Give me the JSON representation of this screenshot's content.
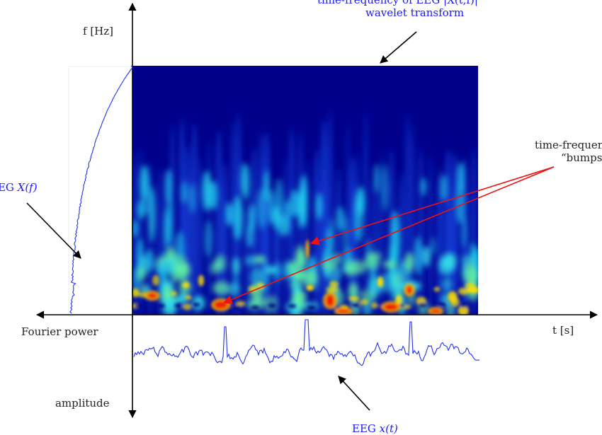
{
  "axes": {
    "freq_axis_label": "f [Hz]",
    "time_axis_label": "t [s]",
    "power_axis_label": "Fourier power",
    "amplitude_axis_label": "amplitude"
  },
  "annotations": {
    "wavelet_line1": "time-frequency of EEG |X(t,f)|",
    "wavelet_line2": "wavelet transform",
    "bumps_line1": "time-frequency",
    "bumps_line2": "“bumps”",
    "fourier_prefix": "EEG ",
    "fourier_math": "X(f)",
    "eeg_prefix": "EEG ",
    "eeg_math": "x(t)"
  },
  "colors": {
    "signal": "#2233ee",
    "annotation_text": "#1a1aff",
    "bump_arrows": "#ee1111",
    "axes": "#000000",
    "spectrogram_background": "#00008b",
    "spectrogram_hot": "#ff2a00"
  }
}
